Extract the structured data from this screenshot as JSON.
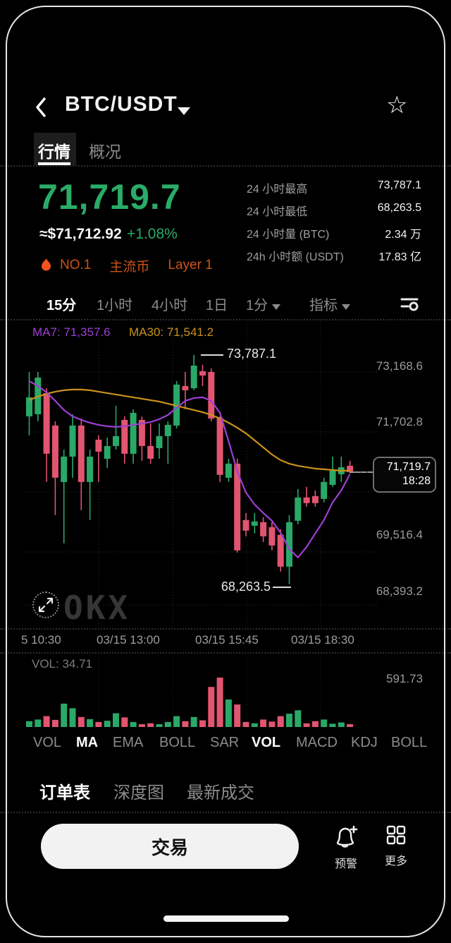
{
  "header": {
    "title": "BTC/USDT",
    "star_glyph": "☆"
  },
  "tabs": {
    "quotes": "行情",
    "overview": "概况"
  },
  "price_section": {
    "price": "71,719.7",
    "fiat": "≈$71,712.92",
    "change": "+1.08%"
  },
  "badges": {
    "rank": "NO.1",
    "category": "主流币",
    "layer": "Layer 1"
  },
  "stats": {
    "rows": [
      {
        "label": "24 小时最高",
        "value": "73,787.1"
      },
      {
        "label": "24 小时最低",
        "value": "68,263.5"
      },
      {
        "label": "24 小时量 (BTC)",
        "value": "2.34 万"
      },
      {
        "label": "24h 小时额 (USDT)",
        "value": "17.83 亿"
      }
    ]
  },
  "timeframes": {
    "items": [
      {
        "label": "15分"
      },
      {
        "label": "1小时"
      },
      {
        "label": "4小时"
      },
      {
        "label": "1日"
      },
      {
        "label": "1分"
      },
      {
        "label": "指标"
      }
    ]
  },
  "chart_data": {
    "type": "candlestick",
    "symbol": "BTC/USDT",
    "interval": "15分",
    "ylim": [
      67200,
      74600
    ],
    "ma7": {
      "label": "MA7: 71,357.6",
      "value": 71357.6,
      "series": [
        73155,
        73036,
        72883,
        72679,
        72458,
        72305,
        72220,
        72152,
        72101,
        72067,
        72050,
        72067,
        72101,
        72135,
        72169,
        72237,
        72339,
        72509,
        72679,
        72747,
        72764,
        72679,
        72390,
        71710,
        70979,
        70469,
        70180,
        69976,
        69789,
        69500,
        69109,
        68905,
        69160,
        69483,
        69806,
        70231,
        70520,
        70911
      ]
    },
    "ma30": {
      "label": "MA30: 71,541.2",
      "value": 71541.2,
      "series": [
        72696,
        72781,
        72849,
        72900,
        72934,
        72951,
        72951,
        72934,
        72900,
        72866,
        72832,
        72798,
        72764,
        72730,
        72696,
        72662,
        72611,
        72560,
        72509,
        72458,
        72407,
        72339,
        72254,
        72152,
        72033,
        71897,
        71727,
        71557,
        71387,
        71251,
        71166,
        71115,
        71081,
        71047,
        71030,
        71013,
        70996,
        70996
      ]
    },
    "candles": [
      [
        72305,
        73376,
        71846,
        72764
      ],
      [
        72356,
        73376,
        72186,
        73240
      ],
      [
        72866,
        72985,
        70724,
        71404
      ],
      [
        72084,
        72186,
        69925,
        70826
      ],
      [
        70724,
        71506,
        69245,
        71336
      ],
      [
        71336,
        72356,
        70826,
        72084
      ],
      [
        72084,
        72254,
        70044,
        70724
      ],
      [
        70724,
        71506,
        69806,
        71336
      ],
      [
        71744,
        71846,
        70724,
        71455
      ],
      [
        71285,
        71795,
        71064,
        71591
      ],
      [
        71591,
        72560,
        71506,
        71829
      ],
      [
        72220,
        72305,
        71166,
        71404
      ],
      [
        71404,
        72475,
        71166,
        72390
      ],
      [
        72220,
        72305,
        71234,
        71591
      ],
      [
        71591,
        72135,
        71166,
        71285
      ],
      [
        71540,
        72135,
        71285,
        71829
      ],
      [
        71829,
        72186,
        71166,
        72101
      ],
      [
        72084,
        73155,
        72016,
        73070
      ],
      [
        73036,
        73376,
        72475,
        72934
      ],
      [
        72985,
        73787,
        72934,
        73529
      ],
      [
        73393,
        73546,
        73036,
        73291
      ],
      [
        73376,
        73461,
        72186,
        72254
      ],
      [
        72271,
        72305,
        70724,
        70894
      ],
      [
        70826,
        71285,
        70724,
        71166
      ],
      [
        71166,
        71285,
        69024,
        69075
      ],
      [
        69806,
        69976,
        69415,
        69551
      ],
      [
        69670,
        69976,
        69483,
        69772
      ],
      [
        69755,
        69874,
        69279,
        69415
      ],
      [
        69636,
        69755,
        69075,
        69194
      ],
      [
        69449,
        69585,
        68565,
        68684
      ],
      [
        68684,
        69925,
        68264,
        69755
      ],
      [
        69789,
        70554,
        69704,
        70350
      ],
      [
        70350,
        70605,
        70129,
        70214
      ],
      [
        70384,
        70520,
        70129,
        70214
      ],
      [
        70316,
        70826,
        70231,
        70724
      ],
      [
        70656,
        71336,
        70605,
        70996
      ],
      [
        70911,
        71336,
        70724,
        71081
      ],
      [
        71115,
        71234,
        70928,
        70962
      ]
    ],
    "volumes": [
      70,
      90,
      130,
      85,
      280,
      225,
      120,
      95,
      60,
      75,
      165,
      115,
      60,
      35,
      45,
      35,
      60,
      130,
      70,
      120,
      80,
      480,
      591.73,
      330,
      270,
      60,
      45,
      90,
      65,
      130,
      160,
      200,
      45,
      70,
      90,
      40,
      55,
      35
    ],
    "volume_max": 591.73,
    "vol_indicator_label": "VOL: 34.71",
    "vol_axis_label": "591.73",
    "y_axis_labels": [
      "73,168.6",
      "71,702.8",
      "69,516.4",
      "68,393.2"
    ],
    "x_axis_labels": [
      "5 10:30",
      "03/15 13:00",
      "03/15 15:45",
      "03/15 18:30"
    ],
    "annotations": {
      "high": {
        "text": "73,787.1",
        "value": 73787.1
      },
      "low": {
        "text": "68,263.5",
        "value": 68263.5
      }
    },
    "last_price": {
      "price": "71,719.7",
      "time": "18:28"
    },
    "colors": {
      "up": "#2aa868",
      "down": "#e25570",
      "ma7": "#9d3fd3",
      "ma30": "#c9921b"
    }
  },
  "indicator_tabs": {
    "items": [
      {
        "label": "VOL"
      },
      {
        "label": "MA"
      },
      {
        "label": "EMA"
      },
      {
        "label": "BOLL"
      },
      {
        "label": "SAR"
      },
      {
        "label": "VOL"
      },
      {
        "label": "MACD"
      },
      {
        "label": "KDJ"
      },
      {
        "label": "BOLL"
      }
    ]
  },
  "order_tabs": {
    "items": [
      {
        "label": "订单表"
      },
      {
        "label": "深度图"
      },
      {
        "label": "最新成交"
      }
    ]
  },
  "bottom_bar": {
    "trade": "交易",
    "alert": "预警",
    "more": "更多"
  },
  "watermark": "OKX",
  "icons": [
    "back-icon",
    "dropdown-caret-icon",
    "star-icon",
    "indicator-settings-icon",
    "expand-icon",
    "flame-icon",
    "alert-bell-plus-icon",
    "more-grid-icon"
  ]
}
